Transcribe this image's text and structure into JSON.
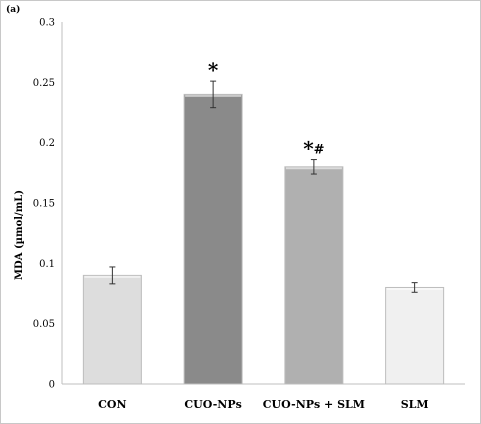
{
  "chart_data": {
    "type": "bar",
    "panel_label": "(a)",
    "ylabel": "MDA (µmol/mL)",
    "xlabel": "",
    "ylim": [
      0,
      0.3
    ],
    "yticks": [
      0,
      0.05,
      0.1,
      0.15,
      0.2,
      0.25,
      0.3
    ],
    "ytick_labels": [
      "0",
      "0.05",
      "0.1",
      "0.15",
      "0.2",
      "0.25",
      "0.3"
    ],
    "grid": false,
    "categories": [
      "CON",
      "CUO-NPs",
      "CUO-NPs + SLM",
      "SLM"
    ],
    "values": [
      0.09,
      0.24,
      0.18,
      0.08
    ],
    "errors": [
      0.007,
      0.011,
      0.006,
      0.004
    ],
    "annotations": [
      "",
      "*",
      "*#",
      ""
    ],
    "colors": [
      "#dddddd",
      "#8a8a8a",
      "#b0b0b0",
      "#f0f0f0"
    ]
  }
}
